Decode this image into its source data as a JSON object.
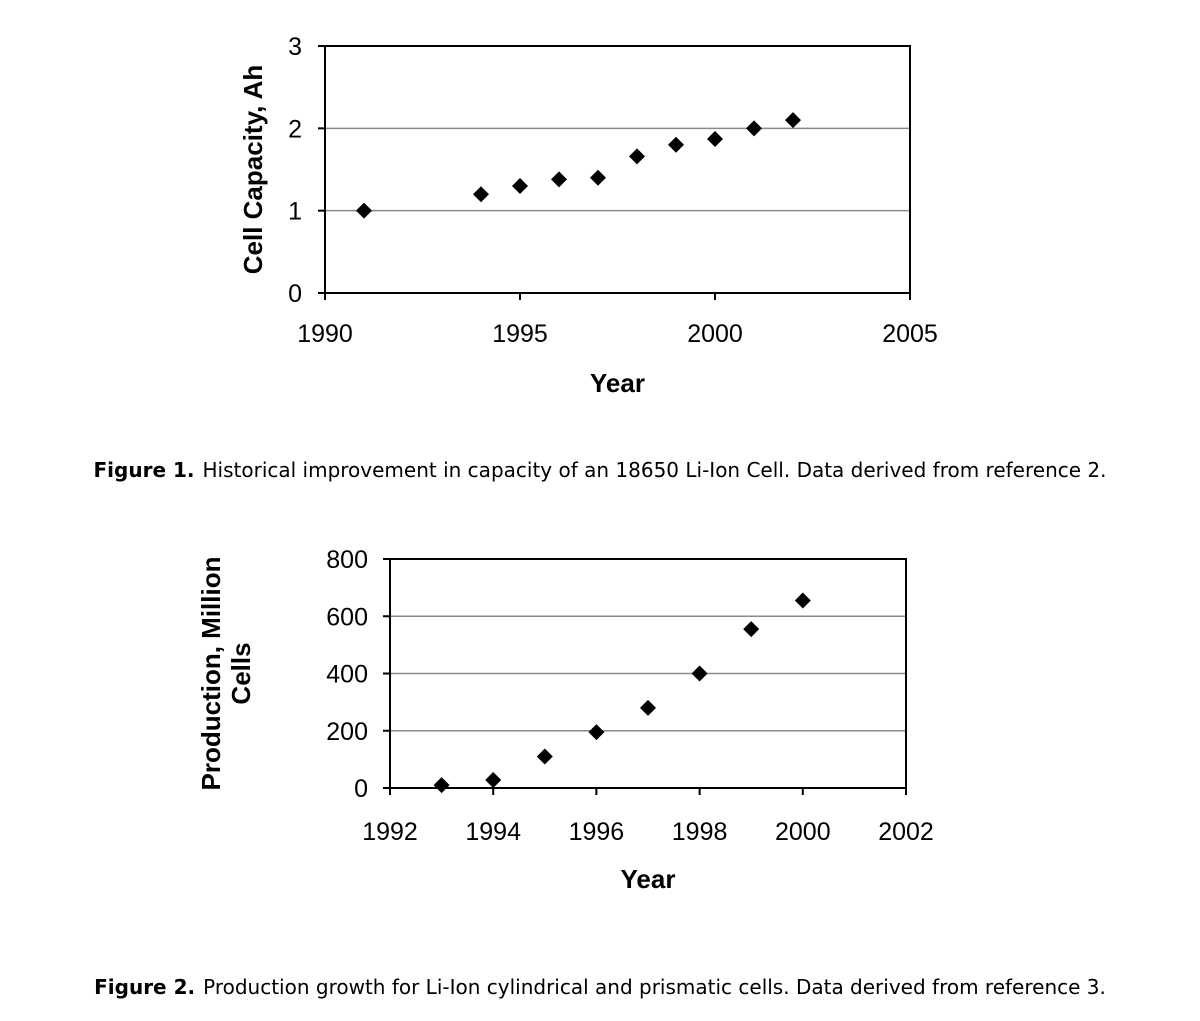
{
  "chart_data": [
    {
      "type": "scatter",
      "xlabel": "Year",
      "ylabel": "Cell Capacity, Ah",
      "xlim": [
        1990,
        2005
      ],
      "ylim": [
        0,
        3
      ],
      "xticks": [
        "1990",
        "1995",
        "2000",
        "2005"
      ],
      "yticks": [
        "0",
        "1",
        "2",
        "3"
      ],
      "grid": "horizontal",
      "marker": "diamond",
      "points": [
        {
          "x": 1991,
          "y": 1.0
        },
        {
          "x": 1994,
          "y": 1.2
        },
        {
          "x": 1995,
          "y": 1.3
        },
        {
          "x": 1996,
          "y": 1.38
        },
        {
          "x": 1997,
          "y": 1.4
        },
        {
          "x": 1998,
          "y": 1.66
        },
        {
          "x": 1999,
          "y": 1.8
        },
        {
          "x": 2000,
          "y": 1.87
        },
        {
          "x": 2001,
          "y": 2.0
        },
        {
          "x": 2002,
          "y": 2.1
        }
      ]
    },
    {
      "type": "scatter",
      "xlabel": "Year",
      "ylabel": [
        "Production, Million",
        "Cells"
      ],
      "xlim": [
        1992,
        2002
      ],
      "ylim": [
        0,
        800
      ],
      "xticks": [
        "1992",
        "1994",
        "1996",
        "1998",
        "2000",
        "2002"
      ],
      "yticks": [
        "0",
        "200",
        "400",
        "600",
        "800"
      ],
      "grid": "horizontal",
      "marker": "diamond",
      "points": [
        {
          "x": 1993,
          "y": 10
        },
        {
          "x": 1994,
          "y": 28
        },
        {
          "x": 1995,
          "y": 110
        },
        {
          "x": 1996,
          "y": 195
        },
        {
          "x": 1997,
          "y": 280
        },
        {
          "x": 1998,
          "y": 400
        },
        {
          "x": 1999,
          "y": 555
        },
        {
          "x": 2000,
          "y": 655
        }
      ]
    }
  ],
  "captions": [
    {
      "label": "Figure 1.",
      "text": "Historical improvement in capacity of an 18650 Li-Ion Cell. Data derived from reference 2."
    },
    {
      "label": "Figure 2.",
      "text": "Production growth for Li-Ion cylindrical and prismatic cells. Data derived from reference 3."
    }
  ]
}
